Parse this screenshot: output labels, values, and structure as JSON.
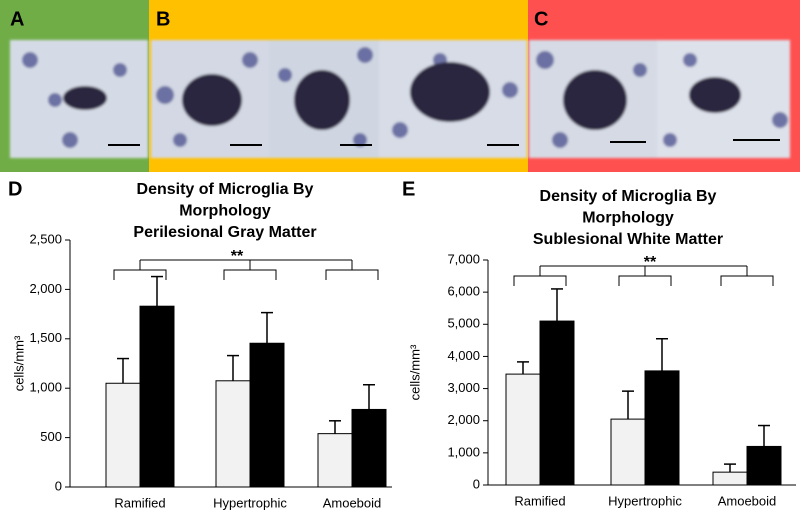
{
  "panels": [
    "A",
    "B",
    "C",
    "D",
    "E"
  ],
  "chart_data": [
    {
      "type": "bar",
      "title": [
        "Density of Microglia By",
        "Morphology",
        "Perilesional Gray Matter"
      ],
      "y_label": "cells/mm³",
      "categories": [
        "Ramified",
        "Hypertrophic",
        "Amoeboid"
      ],
      "series": [
        {
          "color": "#f2f2f2",
          "values": [
            1050,
            1075,
            540
          ],
          "errors": [
            250,
            255,
            130
          ]
        },
        {
          "color": "#000000",
          "values": [
            1830,
            1455,
            785
          ],
          "errors": [
            300,
            310,
            250
          ]
        }
      ],
      "ylim": [
        0,
        2500
      ],
      "yticks": [
        0,
        500,
        {
          "value": 1000,
          "label": "1,000"
        },
        {
          "value": 1500,
          "label": "1,500"
        },
        {
          "value": 2000,
          "label": "2,000"
        },
        {
          "value": 2500,
          "label": "2,500"
        }
      ],
      "annotation": "**",
      "grid": false
    },
    {
      "type": "bar",
      "title": [
        "Density of Microglia By",
        "Morphology",
        "Sublesional White Matter"
      ],
      "y_label": "cells/mm³",
      "categories": [
        "Ramified",
        "Hypertrophic",
        "Amoeboid"
      ],
      "series": [
        {
          "color": "#f2f2f2",
          "values": [
            3450,
            2050,
            400
          ],
          "errors": [
            380,
            870,
            250
          ]
        },
        {
          "color": "#000000",
          "values": [
            5100,
            3550,
            1200
          ],
          "errors": [
            1000,
            1000,
            650
          ]
        }
      ],
      "ylim": [
        0,
        7000
      ],
      "yticks": [
        0,
        {
          "value": 1000,
          "label": "1,000"
        },
        {
          "value": 2000,
          "label": "2,000"
        },
        {
          "value": 3000,
          "label": "3,000"
        },
        {
          "value": 4000,
          "label": "4,000"
        },
        {
          "value": 5000,
          "label": "5,000"
        },
        {
          "value": 6000,
          "label": "6,000"
        },
        {
          "value": 7000,
          "label": "7,000"
        }
      ],
      "annotation": "**",
      "grid": false
    }
  ]
}
